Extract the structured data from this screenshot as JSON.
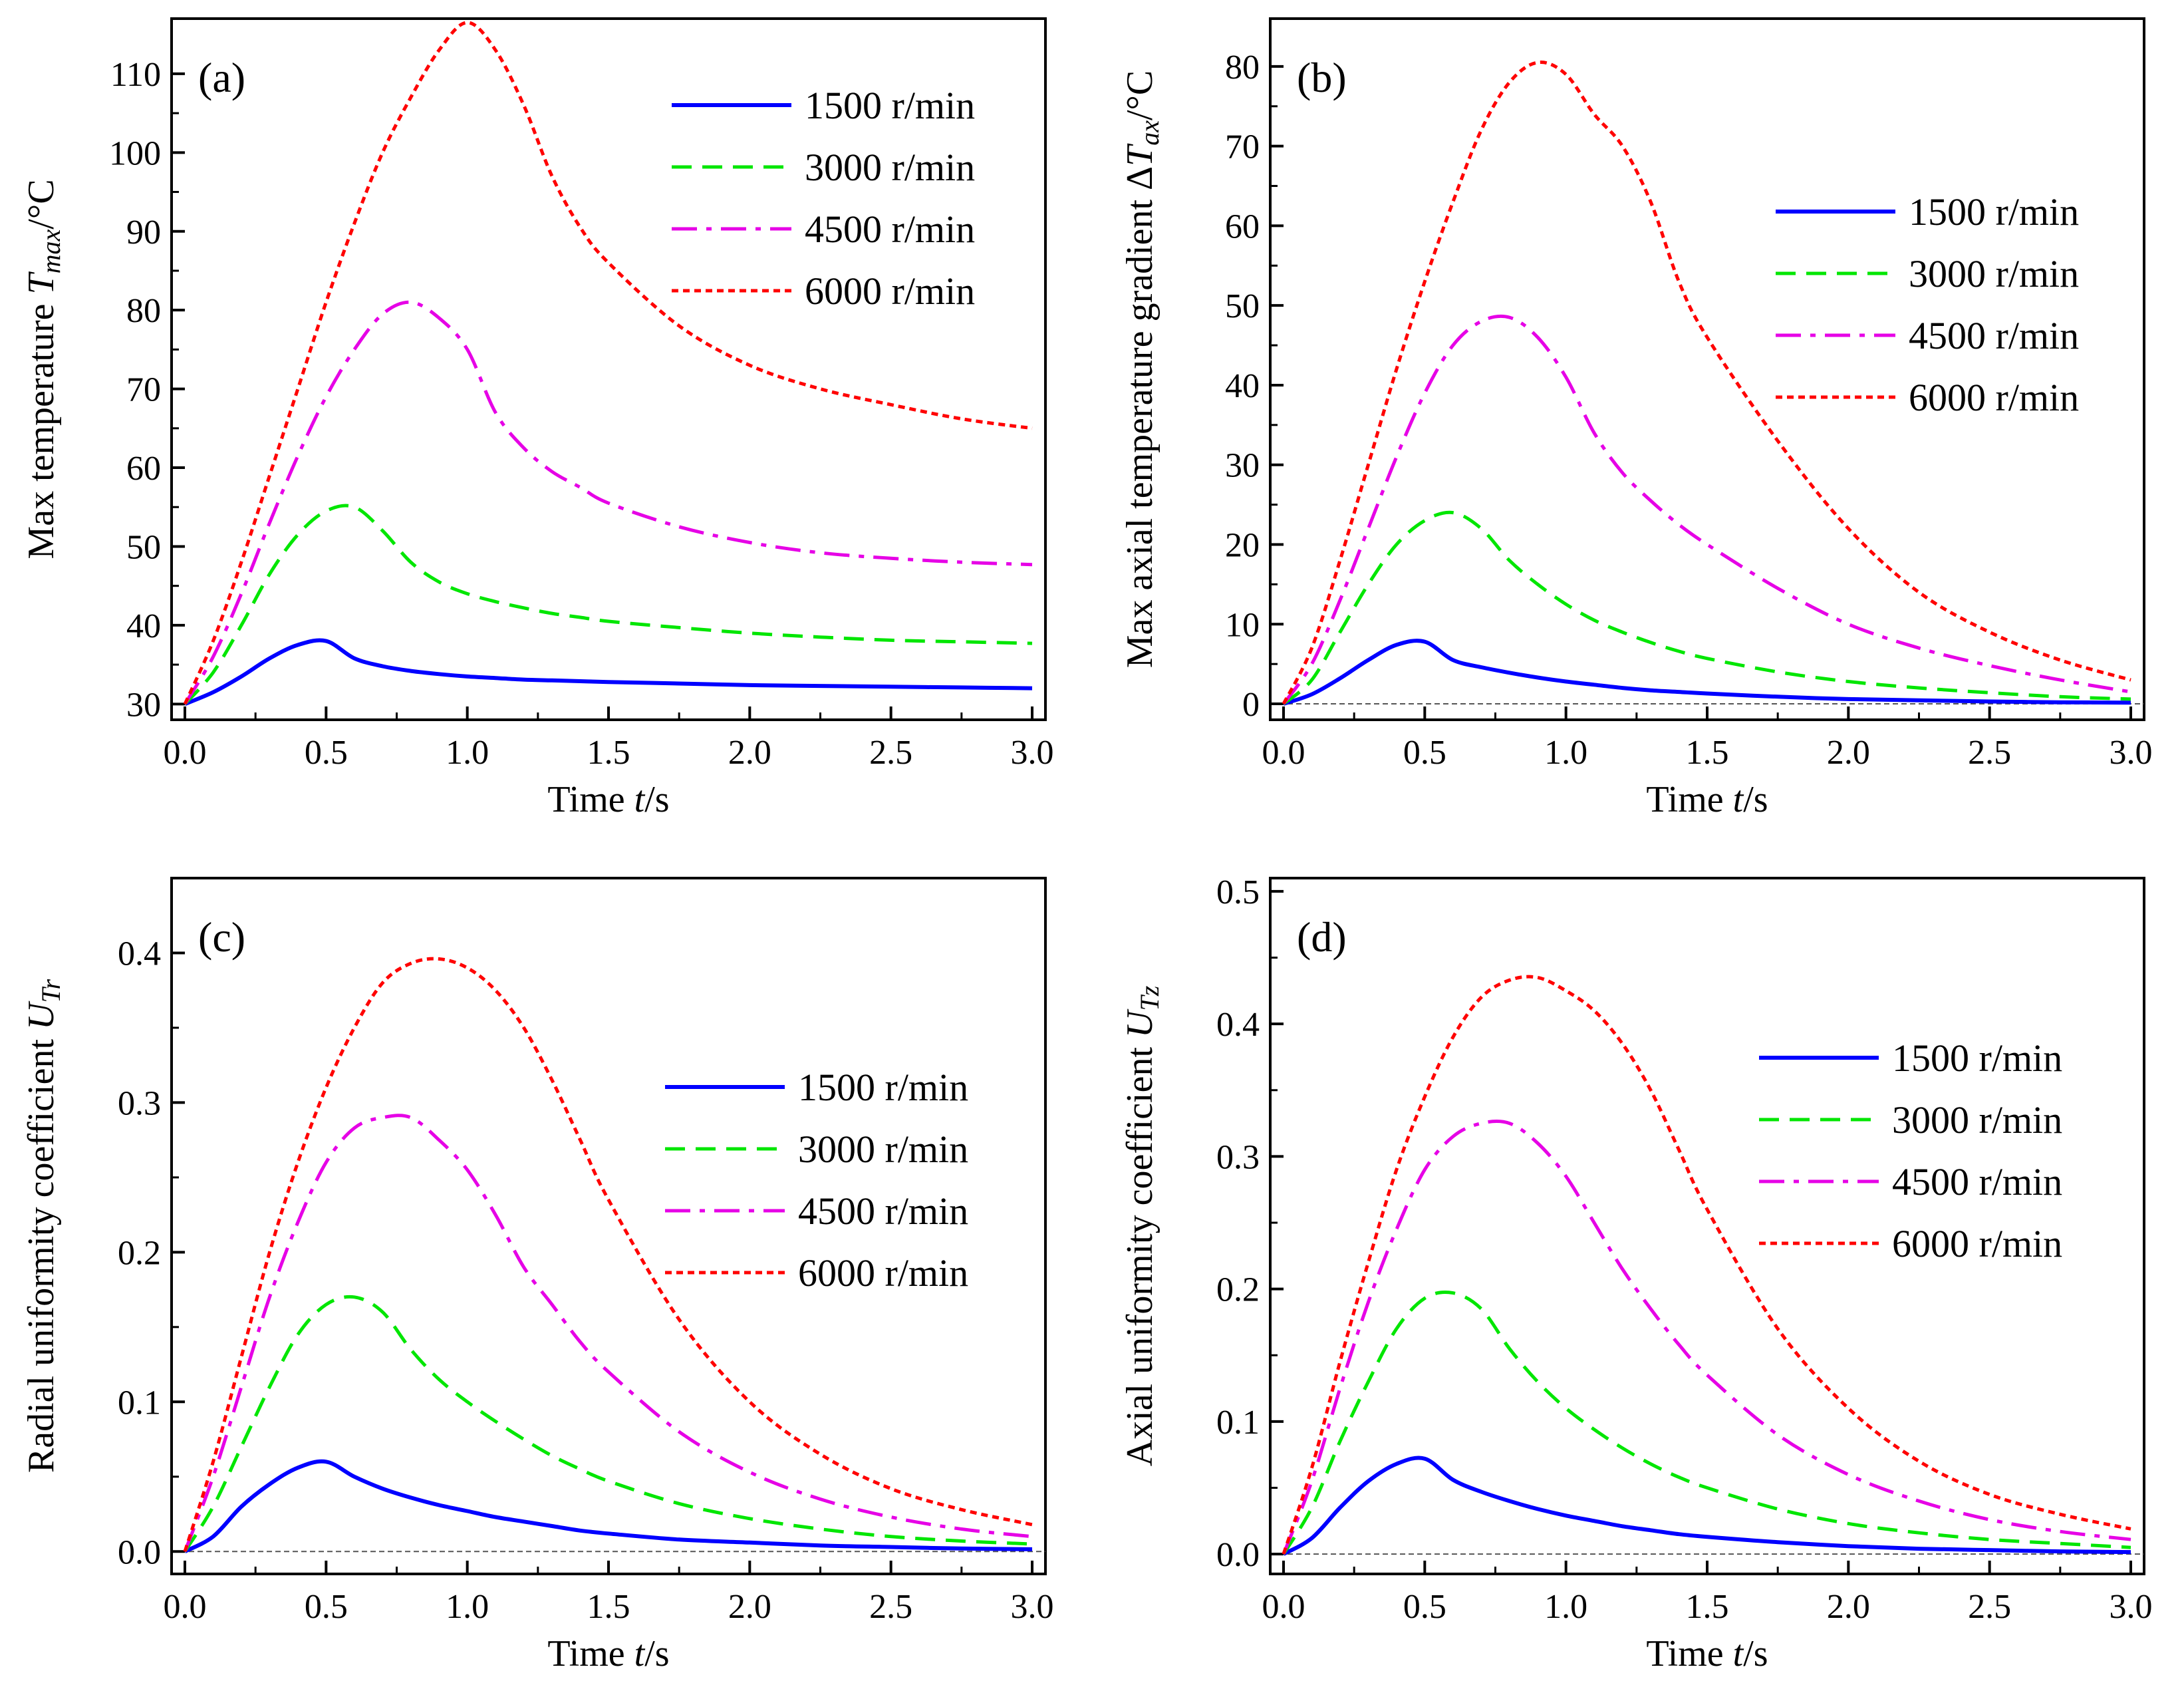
{
  "figure": {
    "x_label_main": "Time ",
    "x_label_var": "t",
    "x_label_unit": "/s"
  },
  "series_colors": [
    "#0000ff",
    "#00e600",
    "#e600e6",
    "#ff0000"
  ],
  "series_styles": [
    "solid",
    "dashed",
    "dashdot",
    "dotted"
  ],
  "chart_data": [
    {
      "type": "line",
      "panel": "(a)",
      "ylabel": "Max temperature T_max/°C",
      "ylabel_parts": [
        "Max temperature ",
        "T",
        "max",
        "/°C"
      ],
      "xlim": [
        0,
        3.0
      ],
      "ylim": [
        28,
        117
      ],
      "xticks": [
        "0.0",
        "0.5",
        "1.0",
        "1.5",
        "2.0",
        "2.5",
        "3.0"
      ],
      "yticks": [
        "30",
        "40",
        "50",
        "60",
        "70",
        "80",
        "90",
        "100",
        "110"
      ],
      "legend": "top-right",
      "zero_line": false,
      "x": [
        0,
        0.1,
        0.2,
        0.3,
        0.4,
        0.5,
        0.6,
        0.7,
        0.8,
        0.9,
        1.0,
        1.1,
        1.2,
        1.3,
        1.4,
        1.5,
        1.75,
        2.0,
        2.25,
        2.5,
        2.75,
        3.0
      ],
      "series": [
        {
          "name": "1500 r/min",
          "values": [
            30,
            31.5,
            33.5,
            35.8,
            37.5,
            38,
            35.8,
            34.8,
            34.2,
            33.8,
            33.5,
            33.3,
            33.1,
            33,
            32.9,
            32.8,
            32.6,
            32.4,
            32.3,
            32.2,
            32.1,
            32
          ]
        },
        {
          "name": "3000 r/min",
          "values": [
            30,
            34,
            40,
            46.5,
            51.5,
            54.5,
            55,
            52,
            48,
            45.5,
            44,
            43,
            42.2,
            41.5,
            41,
            40.5,
            39.7,
            39,
            38.5,
            38.1,
            37.9,
            37.7
          ]
        },
        {
          "name": "4500 r/min",
          "values": [
            30,
            36,
            44,
            53,
            61.5,
            69,
            75,
            79.5,
            81,
            79,
            75,
            67,
            62.5,
            59.5,
            57.5,
            55.5,
            52.5,
            50.5,
            49.2,
            48.5,
            48,
            47.7
          ]
        },
        {
          "name": "6000 r/min",
          "values": [
            30,
            38,
            48,
            59,
            70,
            81,
            91,
            100,
            107,
            113,
            116.5,
            113,
            106,
            97,
            90.5,
            86,
            78,
            73,
            70,
            68,
            66.2,
            65
          ]
        }
      ]
    },
    {
      "type": "line",
      "panel": "(b)",
      "ylabel": "Max axial temperature gradient ΔT_ax/°C",
      "ylabel_parts": [
        "Max axial temperature gradient Δ",
        "T",
        "ax",
        "/°C"
      ],
      "xlim": [
        0,
        3.0
      ],
      "ylim": [
        -2,
        86
      ],
      "xticks": [
        "0.0",
        "0.5",
        "1.0",
        "1.5",
        "2.0",
        "2.5",
        "3.0"
      ],
      "yticks": [
        "0",
        "10",
        "20",
        "30",
        "40",
        "50",
        "60",
        "70",
        "80"
      ],
      "legend": "right",
      "zero_line": true,
      "x": [
        0,
        0.1,
        0.2,
        0.3,
        0.4,
        0.5,
        0.6,
        0.7,
        0.8,
        0.9,
        1.0,
        1.1,
        1.2,
        1.3,
        1.4,
        1.5,
        1.75,
        2.0,
        2.25,
        2.5,
        2.75,
        3.0
      ],
      "series": [
        {
          "name": "1500 r/min",
          "values": [
            0,
            1.2,
            3.2,
            5.5,
            7.4,
            7.8,
            5.5,
            4.6,
            3.9,
            3.3,
            2.8,
            2.4,
            2.0,
            1.7,
            1.5,
            1.3,
            0.9,
            0.6,
            0.45,
            0.3,
            0.2,
            0.15
          ]
        },
        {
          "name": "3000 r/min",
          "values": [
            0,
            3,
            9,
            15,
            20,
            23,
            24,
            22,
            18,
            15,
            12.5,
            10.5,
            9,
            7.7,
            6.6,
            5.7,
            4,
            2.8,
            2,
            1.4,
            0.9,
            0.6
          ]
        },
        {
          "name": "4500 r/min",
          "values": [
            0,
            5,
            13,
            22,
            31,
            39,
            45,
            48,
            48.5,
            46,
            41,
            34,
            29,
            25.5,
            22.5,
            20,
            14.5,
            10,
            7,
            4.8,
            3,
            1.5
          ]
        },
        {
          "name": "6000 r/min",
          "values": [
            0,
            7,
            18,
            30,
            42,
            53,
            63,
            72,
            78,
            80.5,
            79,
            74,
            70,
            63,
            53,
            46,
            33,
            22,
            14,
            9,
            5.5,
            3
          ]
        }
      ]
    },
    {
      "type": "line",
      "panel": "(c)",
      "ylabel": "Radial uniformity coefficient U_Tr",
      "ylabel_parts": [
        "Radial uniformity coefficient ",
        "U",
        "Tr",
        ""
      ],
      "xlim": [
        0,
        3.0
      ],
      "ylim": [
        -0.015,
        0.45
      ],
      "xticks": [
        "0.0",
        "0.5",
        "1.0",
        "1.5",
        "2.0",
        "2.5",
        "3.0"
      ],
      "yticks": [
        "0.0",
        "0.1",
        "0.2",
        "0.3",
        "0.4"
      ],
      "legend": "right",
      "zero_line": true,
      "x": [
        0,
        0.1,
        0.2,
        0.3,
        0.4,
        0.5,
        0.6,
        0.7,
        0.8,
        0.9,
        1.0,
        1.1,
        1.2,
        1.3,
        1.4,
        1.5,
        1.75,
        2.0,
        2.25,
        2.5,
        2.75,
        3.0
      ],
      "series": [
        {
          "name": "1500 r/min",
          "values": [
            0,
            0.01,
            0.03,
            0.045,
            0.056,
            0.06,
            0.05,
            0.042,
            0.036,
            0.031,
            0.027,
            0.023,
            0.02,
            0.017,
            0.014,
            0.012,
            0.008,
            0.006,
            0.004,
            0.003,
            0.002,
            0.0015
          ]
        },
        {
          "name": "3000 r/min",
          "values": [
            0,
            0.03,
            0.07,
            0.11,
            0.145,
            0.165,
            0.17,
            0.16,
            0.135,
            0.115,
            0.1,
            0.087,
            0.075,
            0.064,
            0.055,
            0.047,
            0.032,
            0.022,
            0.015,
            0.01,
            0.007,
            0.005
          ]
        },
        {
          "name": "4500 r/min",
          "values": [
            0,
            0.05,
            0.11,
            0.17,
            0.22,
            0.26,
            0.283,
            0.29,
            0.29,
            0.275,
            0.255,
            0.225,
            0.19,
            0.165,
            0.14,
            0.12,
            0.08,
            0.053,
            0.035,
            0.023,
            0.015,
            0.01
          ]
        },
        {
          "name": "6000 r/min",
          "values": [
            0,
            0.06,
            0.13,
            0.2,
            0.26,
            0.31,
            0.35,
            0.38,
            0.393,
            0.396,
            0.39,
            0.375,
            0.35,
            0.315,
            0.275,
            0.235,
            0.155,
            0.1,
            0.065,
            0.042,
            0.028,
            0.018
          ]
        }
      ]
    },
    {
      "type": "line",
      "panel": "(d)",
      "ylabel": "Axial uniformity coefficient U_Tz",
      "ylabel_parts": [
        "Axial uniformity coefficient ",
        "U",
        "Tz",
        ""
      ],
      "xlim": [
        0,
        3.0
      ],
      "ylim": [
        -0.015,
        0.51
      ],
      "xticks": [
        "0.0",
        "0.5",
        "1.0",
        "1.5",
        "2.0",
        "2.5",
        "3.0"
      ],
      "yticks": [
        "0.0",
        "0.1",
        "0.2",
        "0.3",
        "0.4",
        "0.5"
      ],
      "legend": "right",
      "zero_line": true,
      "x": [
        0,
        0.1,
        0.2,
        0.3,
        0.4,
        0.5,
        0.6,
        0.7,
        0.8,
        0.9,
        1.0,
        1.1,
        1.2,
        1.3,
        1.4,
        1.5,
        1.75,
        2.0,
        2.25,
        2.5,
        2.75,
        3.0
      ],
      "series": [
        {
          "name": "1500 r/min",
          "values": [
            0,
            0.012,
            0.035,
            0.055,
            0.068,
            0.072,
            0.056,
            0.047,
            0.04,
            0.034,
            0.029,
            0.025,
            0.021,
            0.018,
            0.015,
            0.013,
            0.009,
            0.006,
            0.004,
            0.003,
            0.002,
            0.0015
          ]
        },
        {
          "name": "3000 r/min",
          "values": [
            0,
            0.035,
            0.085,
            0.13,
            0.17,
            0.193,
            0.197,
            0.185,
            0.155,
            0.13,
            0.11,
            0.094,
            0.08,
            0.068,
            0.058,
            0.05,
            0.034,
            0.023,
            0.016,
            0.011,
            0.008,
            0.005
          ]
        },
        {
          "name": "4500 r/min",
          "values": [
            0,
            0.055,
            0.125,
            0.19,
            0.245,
            0.29,
            0.315,
            0.325,
            0.325,
            0.31,
            0.285,
            0.25,
            0.215,
            0.185,
            0.158,
            0.135,
            0.09,
            0.06,
            0.04,
            0.026,
            0.017,
            0.011
          ]
        },
        {
          "name": "6000 r/min",
          "values": [
            0,
            0.065,
            0.145,
            0.22,
            0.29,
            0.345,
            0.39,
            0.42,
            0.433,
            0.435,
            0.425,
            0.41,
            0.385,
            0.35,
            0.305,
            0.26,
            0.17,
            0.11,
            0.07,
            0.045,
            0.03,
            0.019
          ]
        }
      ]
    }
  ]
}
